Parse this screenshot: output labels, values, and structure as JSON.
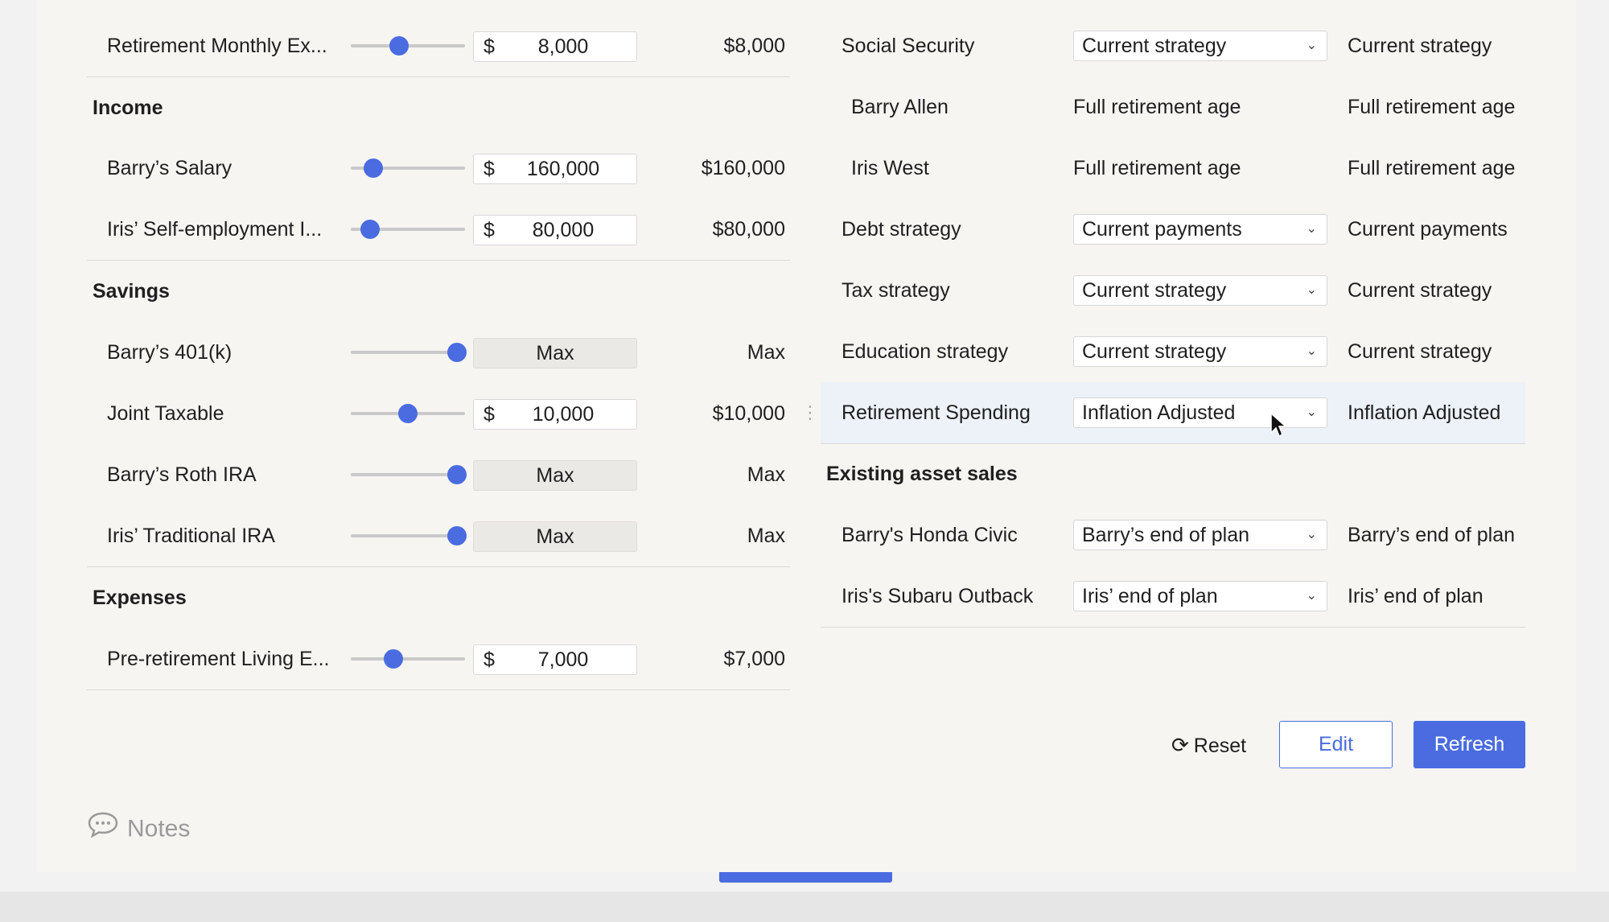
{
  "left": {
    "retirement_monthly": {
      "label": "Retirement Monthly Ex...",
      "currency": "$",
      "value": "8,000",
      "result": "$8,000",
      "slider_fraction": 0.42
    },
    "income_title": "Income",
    "income": [
      {
        "label": "Barry’s Salary",
        "currency": "$",
        "value": "160,000",
        "result": "$160,000",
        "slider_fraction": 0.2
      },
      {
        "label": "Iris’ Self-employment I...",
        "currency": "$",
        "value": "80,000",
        "result": "$80,000",
        "slider_fraction": 0.17
      }
    ],
    "savings_title": "Savings",
    "savings": [
      {
        "label": "Barry’s 401(k)",
        "value": "Max",
        "result": "Max",
        "slider_fraction": 0.93
      },
      {
        "label": "Joint Taxable",
        "currency": "$",
        "value": "10,000",
        "result": "$10,000",
        "slider_fraction": 0.5
      },
      {
        "label": "Barry’s Roth IRA",
        "value": "Max",
        "result": "Max",
        "slider_fraction": 0.93
      },
      {
        "label": "Iris’ Traditional IRA",
        "value": "Max",
        "result": "Max",
        "slider_fraction": 0.93
      }
    ],
    "expenses_title": "Expenses",
    "expenses": [
      {
        "label": "Pre-retirement Living E...",
        "currency": "$",
        "value": "7,000",
        "result": "$7,000",
        "slider_fraction": 0.37
      }
    ]
  },
  "right": {
    "social_security": {
      "label": "Social Security",
      "selected": "Current strategy",
      "result": "Current strategy"
    },
    "barry": {
      "label": "Barry Allen",
      "value": "Full retirement age",
      "result": "Full retirement age"
    },
    "iris": {
      "label": "Iris West",
      "value": "Full retirement age",
      "result": "Full retirement age"
    },
    "debt": {
      "label": "Debt strategy",
      "selected": "Current payments",
      "result": "Current payments"
    },
    "tax": {
      "label": "Tax strategy",
      "selected": "Current strategy",
      "result": "Current strategy"
    },
    "education": {
      "label": "Education strategy",
      "selected": "Current strategy",
      "result": "Current strategy"
    },
    "retirement_spending": {
      "label": "Retirement Spending",
      "selected": "Inflation Adjusted",
      "result": "Inflation Adjusted"
    },
    "asset_sales_title": "Existing asset sales",
    "honda": {
      "label": "Barry's Honda Civic",
      "selected": "Barry’s end of plan",
      "result": "Barry’s end of plan"
    },
    "subaru": {
      "label": "Iris's Subaru Outback",
      "selected": "Iris’ end of plan",
      "result": "Iris’ end of plan"
    }
  },
  "actions": {
    "reset": "Reset",
    "edit": "Edit",
    "refresh": "Refresh"
  },
  "notes": {
    "label": "Notes"
  },
  "colors": {
    "accent": "#4a6ce0",
    "panel": "#f7f5f2",
    "highlight": "#edf1f8"
  }
}
